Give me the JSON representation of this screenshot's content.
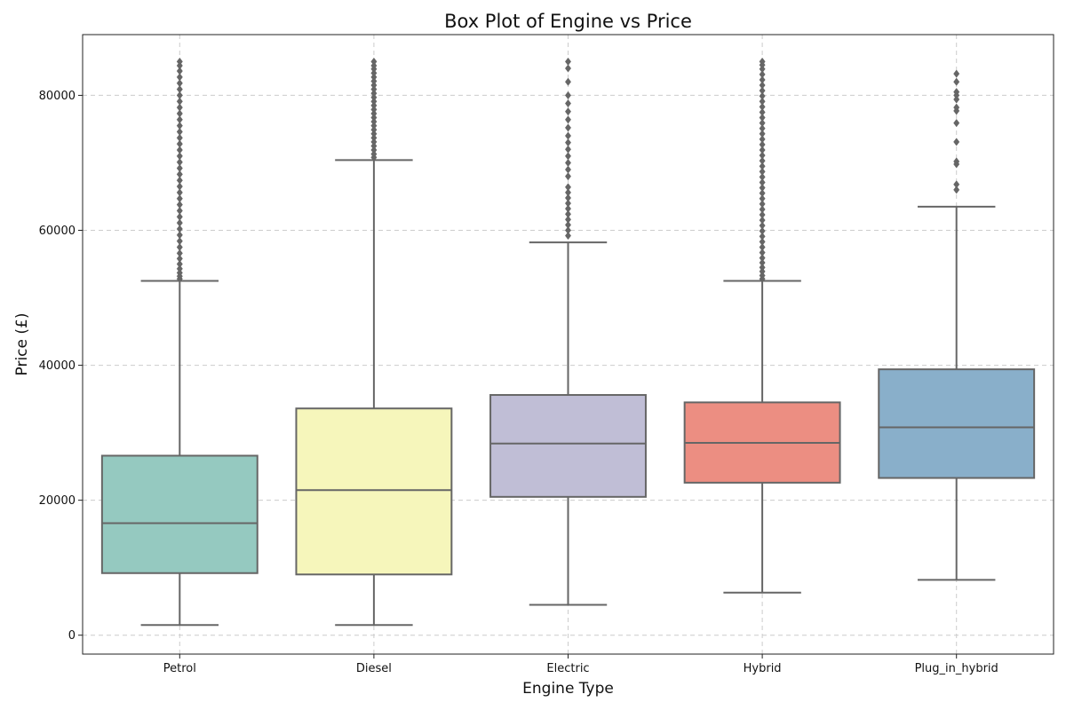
{
  "chart_data": {
    "type": "box",
    "title": "Box Plot of Engine vs Price",
    "xlabel": "Engine Type",
    "ylabel": "Price (£)",
    "ylim": [
      -2800,
      89000
    ],
    "yticks": [
      0,
      20000,
      40000,
      60000,
      80000
    ],
    "grid": true,
    "categories": [
      "Petrol",
      "Diesel",
      "Electric",
      "Hybrid",
      "Plug_in_hybrid"
    ],
    "colors": [
      "#95c9c0",
      "#f6f6bb",
      "#c0bed6",
      "#ec8e82",
      "#89afca"
    ],
    "boxes": [
      {
        "category": "Petrol",
        "whisker_low": 1500,
        "q1": 9200,
        "median": 16600,
        "q3": 26600,
        "whisker_high": 52500,
        "outliers": [
          52800,
          53200,
          53700,
          54300,
          55000,
          55800,
          56600,
          57500,
          58400,
          59300,
          60200,
          61100,
          62000,
          62900,
          63800,
          64700,
          65600,
          66500,
          67400,
          68300,
          69200,
          70100,
          71000,
          71900,
          72800,
          73700,
          74600,
          75500,
          76400,
          77300,
          78200,
          79100,
          80000,
          80900,
          81800,
          82700,
          83600,
          84400,
          85000
        ]
      },
      {
        "category": "Diesel",
        "whisker_low": 1500,
        "q1": 9000,
        "median": 21500,
        "q3": 33600,
        "whisker_high": 70400,
        "outliers": [
          70800,
          71300,
          71900,
          72500,
          73100,
          73700,
          74300,
          74900,
          75500,
          76100,
          76700,
          77300,
          77900,
          78500,
          79100,
          79700,
          80300,
          80900,
          81500,
          82100,
          82700,
          83300,
          83900,
          84400,
          85000
        ]
      },
      {
        "category": "Electric",
        "whisker_low": 4500,
        "q1": 20500,
        "median": 28400,
        "q3": 35600,
        "whisker_high": 58200,
        "outliers": [
          59200,
          60000,
          60800,
          61600,
          62400,
          63200,
          64000,
          64800,
          65600,
          66400,
          68000,
          69000,
          70000,
          71000,
          72000,
          73000,
          74000,
          75200,
          76400,
          77600,
          78800,
          80000,
          82000,
          84000,
          85000
        ]
      },
      {
        "category": "Hybrid",
        "whisker_low": 6300,
        "q1": 22600,
        "median": 28500,
        "q3": 34500,
        "whisker_high": 52500,
        "outliers": [
          52800,
          53300,
          53900,
          54500,
          55200,
          55900,
          56700,
          57500,
          58300,
          59100,
          59900,
          60700,
          61500,
          62300,
          63100,
          63900,
          64700,
          65500,
          66300,
          67100,
          67900,
          68700,
          69500,
          70300,
          71100,
          71900,
          72700,
          73500,
          74300,
          75100,
          75900,
          76700,
          77500,
          78300,
          79100,
          79900,
          80700,
          81500,
          82300,
          83100,
          83900,
          84500,
          85000
        ]
      },
      {
        "category": "Plug_in_hybrid",
        "whisker_low": 8200,
        "q1": 23300,
        "median": 30800,
        "q3": 39400,
        "whisker_high": 63500,
        "outliers": [
          66000,
          66800,
          69800,
          70200,
          73100,
          75900,
          77700,
          78200,
          79400,
          80000,
          80500,
          82000,
          83200
        ]
      }
    ]
  }
}
